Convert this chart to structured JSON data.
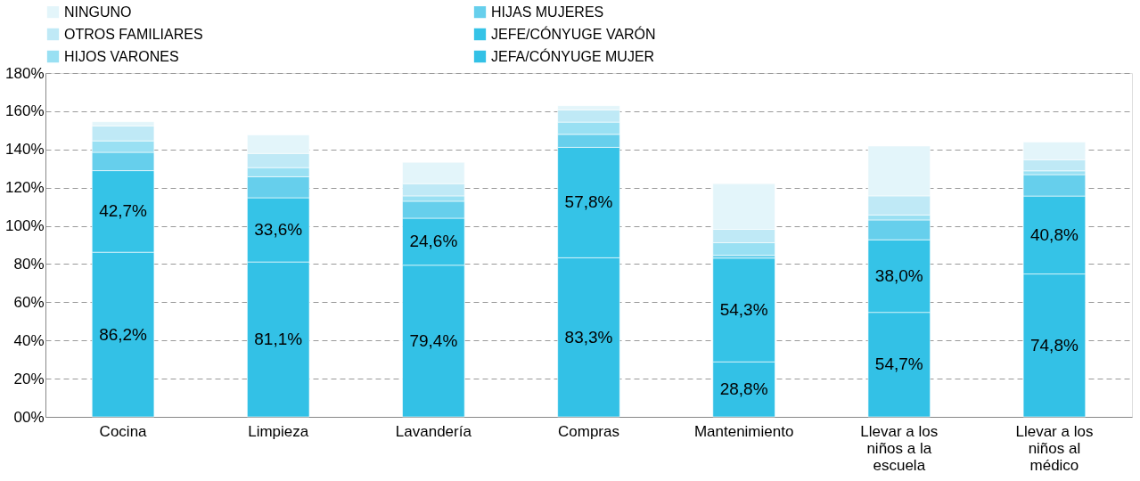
{
  "chart_data": {
    "type": "bar",
    "stacked": true,
    "legend": "top",
    "grid": "y",
    "categories": [
      "Cocina",
      "Limpieza",
      "Lavandería",
      "Compras",
      "Mantenimiento",
      "Llevar a los niños a la escuela",
      "Llevar a los niños al médico"
    ],
    "series": [
      {
        "name": "JEFA/CÓNYUGE MUJER",
        "color": "#33c1e6",
        "values": [
          86.2,
          81.1,
          79.4,
          83.3,
          28.8,
          54.7,
          74.8
        ],
        "value_labels": [
          "86,2%",
          "81,1%",
          "79,4%",
          "83,3%",
          "28,8%",
          "54,7%",
          "74,8%"
        ]
      },
      {
        "name": "JEFE/CÓNYUGE VARÓN",
        "color": "#35c3e7",
        "values": [
          42.7,
          33.6,
          24.6,
          57.8,
          54.3,
          38.0,
          40.8
        ],
        "value_labels": [
          "42,7%",
          "33,6%",
          "24,6%",
          "57,8%",
          "54,3%",
          "38,0%",
          "40,8%"
        ]
      },
      {
        "name": "HIJAS MUJERES",
        "color": "#66cfec",
        "values": [
          9.6,
          11.0,
          8.9,
          6.8,
          1.5,
          10.4,
          11.2
        ]
      },
      {
        "name": "HIJOS VARONES",
        "color": "#99e0f3",
        "values": [
          6.0,
          4.8,
          2.8,
          6.4,
          6.6,
          2.6,
          2.0
        ]
      },
      {
        "name": "OTROS FAMILIARES",
        "color": "#bfe9f6",
        "values": [
          7.8,
          7.4,
          6.4,
          6.4,
          7.0,
          10.0,
          5.8
        ]
      },
      {
        "name": "NINGUNO",
        "color": "#e3f5fa",
        "values": [
          2.2,
          9.7,
          11.2,
          2.2,
          23.9,
          26.1,
          9.3
        ]
      }
    ],
    "ylim": [
      0,
      180
    ],
    "yticks": [
      {
        "value": 0,
        "label": "00%"
      },
      {
        "value": 20,
        "label": "20%"
      },
      {
        "value": 40,
        "label": "40%"
      },
      {
        "value": 60,
        "label": "60%"
      },
      {
        "value": 80,
        "label": "80%"
      },
      {
        "value": 100,
        "label": "100%"
      },
      {
        "value": 120,
        "label": "120%"
      },
      {
        "value": 140,
        "label": "140%"
      },
      {
        "value": 160,
        "label": "160%"
      },
      {
        "value": 180,
        "label": "180%"
      }
    ]
  }
}
